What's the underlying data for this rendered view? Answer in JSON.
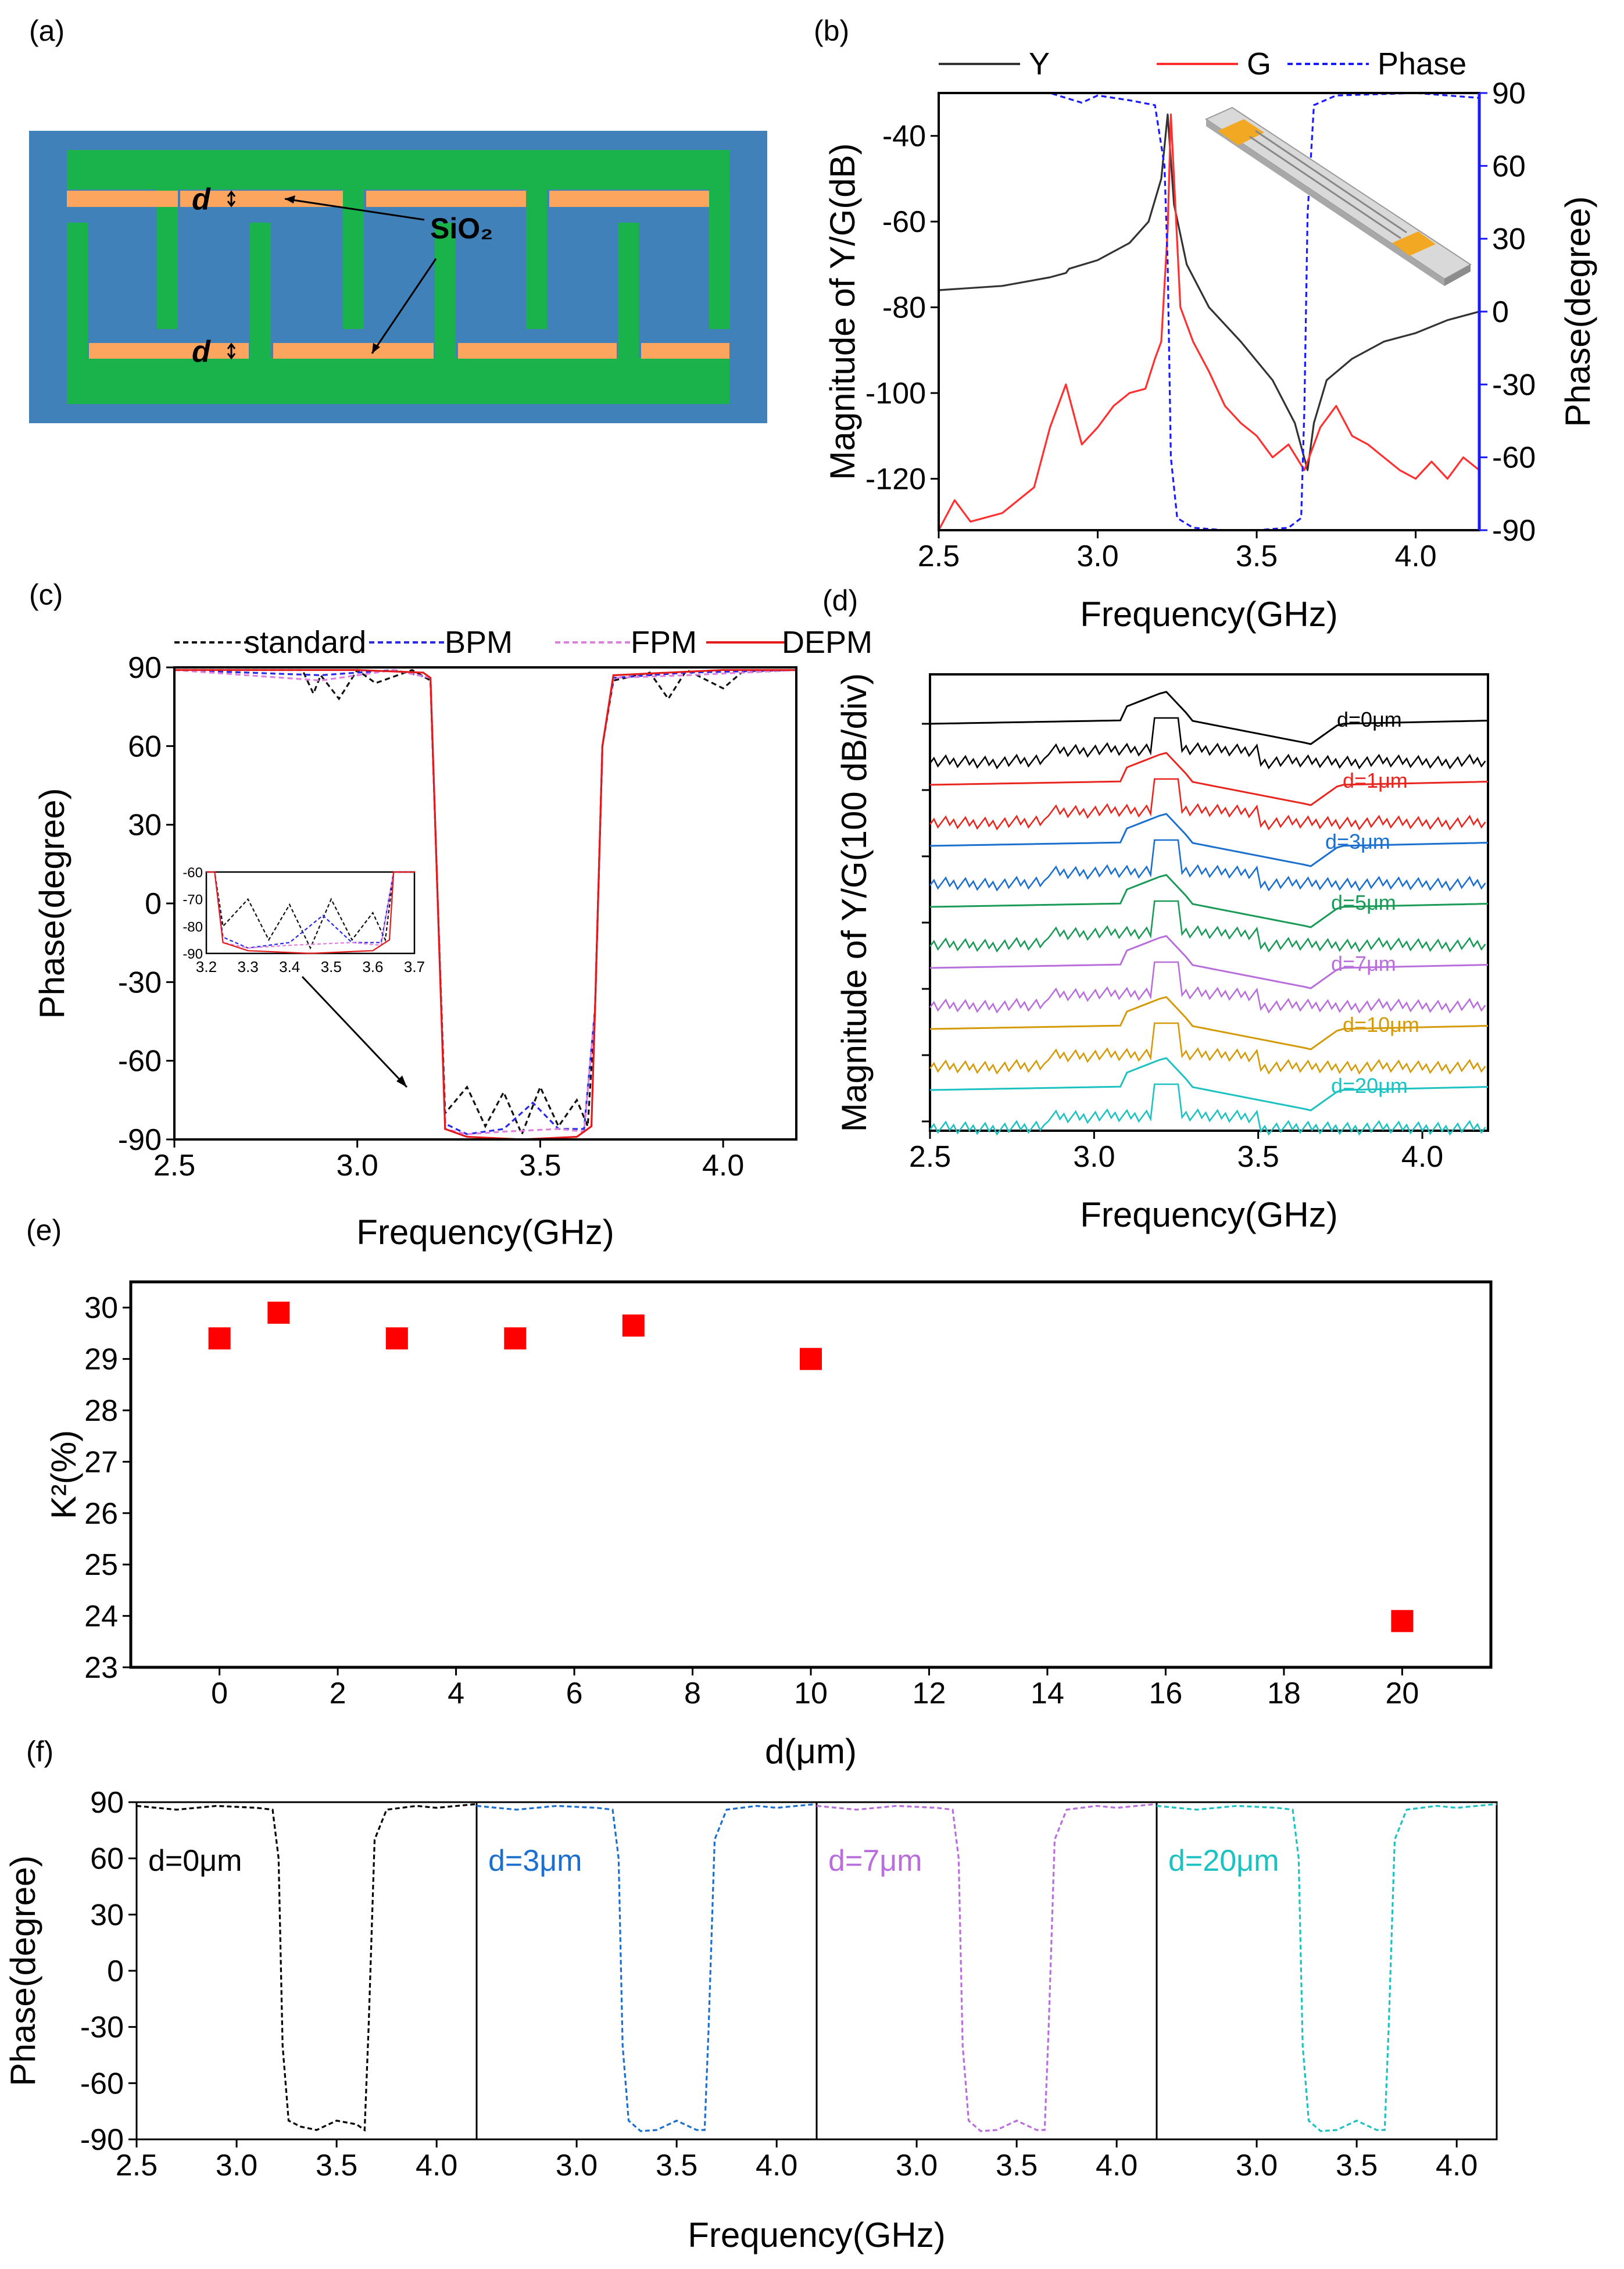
{
  "panels": {
    "a": "(a)",
    "b": "(b)",
    "c": "(c)",
    "d": "(d)",
    "e": "(e)",
    "f": "(f)"
  },
  "schematic": {
    "d_top": "d",
    "d_bottom": "d",
    "sio2": "SiO₂",
    "colors": {
      "substrate": "#4081b9",
      "electrode": "#1ab24a",
      "sio2": "#fba55f"
    }
  },
  "chart_data": [
    {
      "id": "b",
      "type": "line",
      "xlabel": "Frequency(GHz)",
      "ylabel": "Magnitude of Y/G(dB)",
      "y2label": "Phase(degree)",
      "xlim": [
        2.5,
        4.2
      ],
      "ylim": [
        -132,
        -30
      ],
      "y2lim": [
        -90,
        90
      ],
      "xticks": [
        "2.5",
        "3.0",
        "3.5",
        "4.0"
      ],
      "yticks": [
        "-40",
        "-60",
        "-80",
        "-100",
        "-120"
      ],
      "y2ticks": [
        "90",
        "60",
        "30",
        "0",
        "-30",
        "-60",
        "-90"
      ],
      "legend": [
        "Y",
        "G",
        "Phase"
      ],
      "legend_position": "top",
      "series": [
        {
          "name": "Y",
          "color": "#333333",
          "x": [
            2.5,
            2.7,
            2.85,
            2.9,
            2.91,
            3.0,
            3.1,
            3.16,
            3.2,
            3.22,
            3.24,
            3.28,
            3.35,
            3.45,
            3.55,
            3.62,
            3.66,
            3.68,
            3.72,
            3.8,
            3.9,
            4.0,
            4.1,
            4.2
          ],
          "y": [
            -76,
            -75,
            -73,
            -72,
            -71,
            -69,
            -65,
            -60,
            -50,
            -35,
            -56,
            -70,
            -80,
            -88,
            -97,
            -107,
            -118,
            -107,
            -97,
            -92,
            -88,
            -86,
            -83,
            -81
          ]
        },
        {
          "name": "G",
          "color": "#ff3030",
          "x": [
            2.5,
            2.55,
            2.6,
            2.7,
            2.8,
            2.85,
            2.9,
            2.95,
            3.0,
            3.05,
            3.1,
            3.15,
            3.18,
            3.2,
            3.22,
            3.23,
            3.26,
            3.3,
            3.35,
            3.4,
            3.45,
            3.5,
            3.55,
            3.6,
            3.65,
            3.7,
            3.75,
            3.8,
            3.85,
            3.9,
            3.95,
            4.0,
            4.05,
            4.1,
            4.15,
            4.2
          ],
          "y": [
            -132,
            -125,
            -130,
            -128,
            -122,
            -108,
            -98,
            -112,
            -108,
            -103,
            -100,
            -99,
            -92,
            -88,
            -62,
            -35,
            -80,
            -88,
            -95,
            -103,
            -107,
            -110,
            -115,
            -112,
            -118,
            -108,
            -103,
            -110,
            -112,
            -115,
            -118,
            -120,
            -116,
            -120,
            -115,
            -118
          ]
        },
        {
          "name": "Phase",
          "color": "#1a1aff",
          "dash": true,
          "axis": "right",
          "x": [
            2.5,
            2.85,
            2.9,
            2.95,
            3.0,
            3.1,
            3.18,
            3.21,
            3.22,
            3.23,
            3.25,
            3.3,
            3.4,
            3.5,
            3.6,
            3.64,
            3.65,
            3.66,
            3.68,
            3.75,
            4.0,
            4.2
          ],
          "y": [
            90,
            90,
            88,
            86,
            89,
            87,
            85,
            60,
            20,
            -60,
            -85,
            -89,
            -90,
            -90,
            -89,
            -85,
            -40,
            40,
            85,
            89,
            90,
            88
          ]
        }
      ]
    },
    {
      "id": "c",
      "type": "line",
      "xlabel": "Frequency(GHz)",
      "ylabel": "Phase(degree)",
      "xlim": [
        2.5,
        4.2
      ],
      "ylim": [
        -90,
        90
      ],
      "xticks": [
        "2.5",
        "3.0",
        "3.5",
        "4.0"
      ],
      "yticks": [
        "90",
        "60",
        "30",
        "0",
        "-30",
        "-60",
        "-90"
      ],
      "legend": [
        "standard",
        "BPM",
        "FPM",
        "DEPM"
      ],
      "legend_position": "top",
      "series": [
        {
          "name": "standard",
          "color": "#111111",
          "dash": true,
          "x": [
            2.5,
            2.85,
            2.88,
            2.9,
            2.95,
            3.0,
            3.05,
            3.15,
            3.2,
            3.22,
            3.24,
            3.3,
            3.35,
            3.4,
            3.45,
            3.5,
            3.55,
            3.6,
            3.63,
            3.65,
            3.67,
            3.7,
            3.8,
            3.85,
            3.9,
            4.0,
            4.05,
            4.2
          ],
          "y": [
            89,
            89,
            80,
            87,
            78,
            89,
            84,
            89,
            85,
            0,
            -80,
            -70,
            -85,
            -72,
            -88,
            -70,
            -85,
            -75,
            -85,
            -40,
            60,
            85,
            88,
            78,
            89,
            82,
            88,
            89
          ]
        },
        {
          "name": "BPM",
          "color": "#2929e8",
          "dash": true,
          "x": [
            2.5,
            2.9,
            3.0,
            3.1,
            3.2,
            3.22,
            3.24,
            3.3,
            3.4,
            3.48,
            3.55,
            3.62,
            3.65,
            3.67,
            3.7,
            3.9,
            4.2
          ],
          "y": [
            89,
            87,
            88,
            89,
            86,
            0,
            -84,
            -88,
            -86,
            -76,
            -86,
            -86,
            -40,
            60,
            86,
            88,
            89
          ]
        },
        {
          "name": "FPM",
          "color": "#e07fe0",
          "dash": true,
          "x": [
            2.5,
            2.9,
            3.0,
            3.1,
            3.2,
            3.22,
            3.24,
            3.3,
            3.4,
            3.55,
            3.62,
            3.65,
            3.67,
            3.7,
            3.9,
            4.2
          ],
          "y": [
            89,
            85,
            87,
            89,
            86,
            0,
            -86,
            -88,
            -87,
            -86,
            -87,
            -40,
            60,
            86,
            87,
            89
          ]
        },
        {
          "name": "DEPM",
          "color": "#e31a1c",
          "x": [
            2.5,
            3.0,
            3.18,
            3.2,
            3.22,
            3.24,
            3.3,
            3.45,
            3.6,
            3.64,
            3.65,
            3.67,
            3.7,
            4.0,
            4.2
          ],
          "y": [
            89,
            89,
            88,
            86,
            0,
            -86,
            -89,
            -90,
            -89,
            -85,
            -40,
            60,
            87,
            89,
            89
          ]
        }
      ],
      "inset": {
        "xlim": [
          3.2,
          3.7
        ],
        "ylim": [
          -90,
          -60
        ],
        "xticks": [
          "3.2",
          "3.3",
          "3.4",
          "3.5",
          "3.6",
          "3.7"
        ],
        "yticks": [
          "-60",
          "-70",
          "-80",
          "-90"
        ]
      }
    },
    {
      "id": "d",
      "type": "line",
      "xlabel": "Frequency(GHz)",
      "ylabel": "Magnitude of Y/G(100 dB/div)",
      "xlim": [
        2.5,
        4.2
      ],
      "xticks": [
        "2.5",
        "3.0",
        "3.5",
        "4.0"
      ],
      "series": [
        {
          "name": "d=0μm",
          "color": "#000000"
        },
        {
          "name": "d=1μm",
          "color": "#e8251e"
        },
        {
          "name": "d=3μm",
          "color": "#1b6fce"
        },
        {
          "name": "d=5μm",
          "color": "#1a9a56"
        },
        {
          "name": "d=7μm",
          "color": "#b96fdb"
        },
        {
          "name": "d=10μm",
          "color": "#d49a07"
        },
        {
          "name": "d=20μm",
          "color": "#1cc2c2"
        }
      ]
    },
    {
      "id": "e",
      "type": "scatter",
      "xlabel": "d(μm)",
      "ylabel": "K²(%)",
      "xlim": [
        -1.5,
        21.5
      ],
      "ylim": [
        23,
        30.5
      ],
      "xticks": [
        "0",
        "2",
        "4",
        "6",
        "8",
        "10",
        "12",
        "14",
        "16",
        "18",
        "20"
      ],
      "yticks": [
        "30",
        "29",
        "28",
        "27",
        "26",
        "25",
        "24",
        "23"
      ],
      "series": [
        {
          "color": "#ff0000",
          "x": [
            0,
            1,
            3,
            5,
            7,
            10,
            20
          ],
          "y": [
            29.4,
            29.9,
            29.4,
            29.4,
            29.65,
            29.0,
            23.9
          ]
        }
      ]
    },
    {
      "id": "f",
      "type": "line",
      "xlabel": "Frequency(GHz)",
      "ylabel": "Phase(degree)",
      "ylim": [
        -90,
        90
      ],
      "yticks": [
        "90",
        "60",
        "30",
        "0",
        "-30",
        "-60",
        "-90"
      ],
      "subplots": [
        {
          "label": "d=0μm",
          "color": "#000000",
          "xticks": [
            "2.5",
            "3.0",
            "3.5",
            "4.0"
          ],
          "xlim": [
            2.5,
            4.2
          ]
        },
        {
          "label": "d=3μm",
          "color": "#1b6fce",
          "xticks": [
            "3.0",
            "3.5",
            "4.0"
          ],
          "xlim": [
            2.5,
            4.2
          ]
        },
        {
          "label": "d=7μm",
          "color": "#b96fdb",
          "xticks": [
            "3.0",
            "3.5",
            "4.0"
          ],
          "xlim": [
            2.5,
            4.2
          ]
        },
        {
          "label": "d=20μm",
          "color": "#1cc2c2",
          "xticks": [
            "3.0",
            "3.5",
            "4.0"
          ],
          "xlim": [
            2.5,
            4.2
          ]
        }
      ]
    }
  ]
}
